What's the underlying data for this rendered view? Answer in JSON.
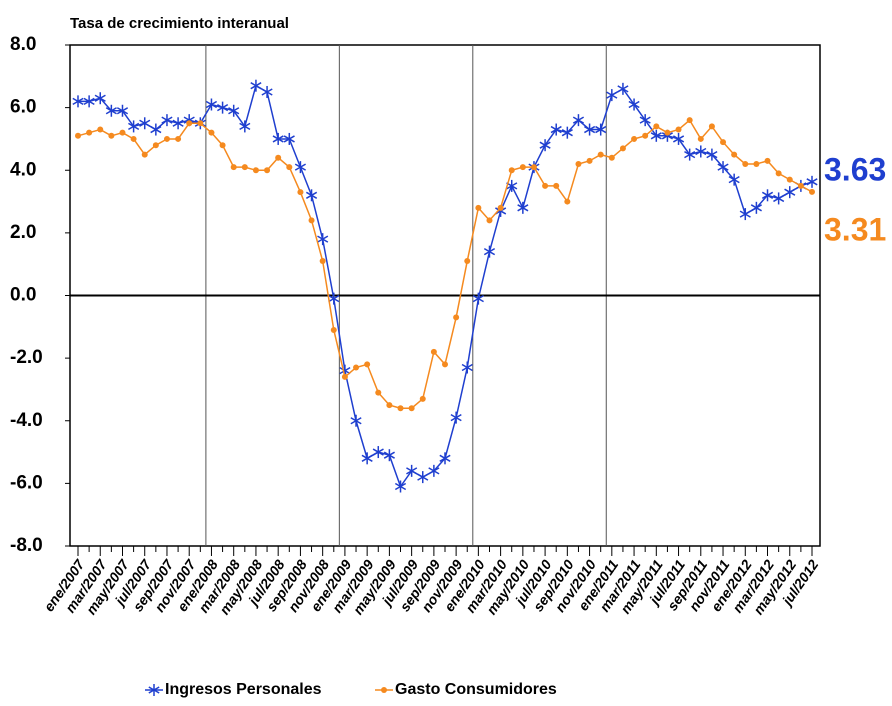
{
  "chart_data": {
    "type": "line",
    "title": "Tasa de crecimiento interanual",
    "categories": [
      "ene/2007",
      null,
      "mar/2007",
      null,
      "may/2007",
      null,
      "jul/2007",
      null,
      "sep/2007",
      null,
      "nov/2007",
      null,
      "ene/2008",
      null,
      "mar/2008",
      null,
      "may/2008",
      null,
      "jul/2008",
      null,
      "sep/2008",
      null,
      "nov/2008",
      null,
      "ene/2009",
      null,
      "mar/2009",
      null,
      "may/2009",
      null,
      "jul/2009",
      null,
      "sep/2009",
      null,
      "nov/2009",
      null,
      "ene/2010",
      null,
      "mar/2010",
      null,
      "may/2010",
      null,
      "jul/2010",
      null,
      "sep/2010",
      null,
      "nov/2010",
      null,
      "ene/2011",
      null,
      "mar/2011",
      null,
      "may/2011",
      null,
      "jul/2011",
      null,
      "sep/2011",
      null,
      "nov/2011",
      null,
      "ene/2012",
      null,
      "mar/2012",
      null,
      "may/2012",
      null,
      "jul/2012"
    ],
    "series": [
      {
        "name": "Ingresos Personales",
        "color": "#1f3fcf",
        "values": [
          6.2,
          6.2,
          6.3,
          5.9,
          5.9,
          5.4,
          5.5,
          5.3,
          5.6,
          5.5,
          5.6,
          5.5,
          6.1,
          6.0,
          5.9,
          5.4,
          6.7,
          6.5,
          5.0,
          5.0,
          4.1,
          3.2,
          1.8,
          -0.1,
          -2.4,
          -4.0,
          -5.2,
          -5.0,
          -5.1,
          -6.1,
          -5.6,
          -5.8,
          -5.6,
          -5.2,
          -3.9,
          -2.3,
          -0.1,
          1.4,
          2.7,
          3.5,
          2.8,
          4.1,
          4.8,
          5.3,
          5.2,
          5.6,
          5.3,
          5.3,
          6.4,
          6.6,
          6.1,
          5.6,
          5.1,
          5.1,
          5.0,
          4.5,
          4.6,
          4.5,
          4.1,
          3.7,
          2.6,
          2.8,
          3.2,
          3.1,
          3.3,
          3.5,
          3.63
        ]
      },
      {
        "name": "Gasto Consumidores",
        "color": "#f58a1f",
        "values": [
          5.1,
          5.2,
          5.3,
          5.1,
          5.2,
          5.0,
          4.5,
          4.8,
          5.0,
          5.0,
          5.5,
          5.5,
          5.2,
          4.8,
          4.1,
          4.1,
          4.0,
          4.0,
          4.4,
          4.1,
          3.3,
          2.4,
          1.1,
          -1.1,
          -2.6,
          -2.3,
          -2.2,
          -3.1,
          -3.5,
          -3.6,
          -3.6,
          -3.3,
          -1.8,
          -2.2,
          -0.7,
          1.1,
          2.8,
          2.4,
          2.8,
          4.0,
          4.1,
          4.1,
          3.5,
          3.5,
          3.0,
          4.2,
          4.3,
          4.5,
          4.4,
          4.7,
          5.0,
          5.1,
          5.4,
          5.2,
          5.3,
          5.6,
          5.0,
          5.4,
          4.9,
          4.5,
          4.2,
          4.2,
          4.3,
          3.9,
          3.7,
          3.5,
          3.31
        ]
      }
    ],
    "ylim": [
      -8,
      8
    ],
    "yticks": [
      {
        "value": -8,
        "label": "-8.0"
      },
      {
        "value": -6,
        "label": "-6.0"
      },
      {
        "value": -4,
        "label": "-4.0"
      },
      {
        "value": -2,
        "label": "-2.0"
      },
      {
        "value": 0,
        "label": "0.0"
      },
      {
        "value": 2,
        "label": "2.0"
      },
      {
        "value": 4,
        "label": "4.0"
      },
      {
        "value": 6,
        "label": "6.0"
      },
      {
        "value": 8,
        "label": "8.0"
      }
    ]
  }
}
